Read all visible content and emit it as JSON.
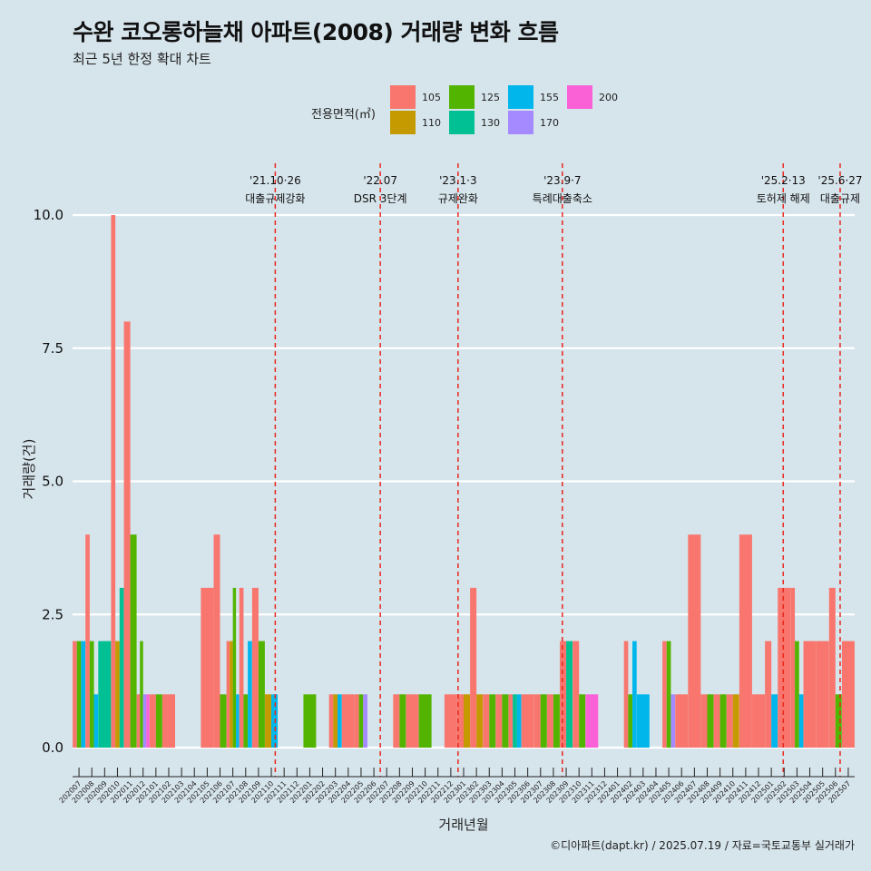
{
  "title": "수완 코오롱하늘채 아파트(2008) 거래량 변화 흐름",
  "subtitle": "최근 5년 한정 확대 차트",
  "caption": "©디아파트(dapt.kr) / 2025.07.19 / 자료=국토교통부 실거래가",
  "colors": {
    "background": "#d6e4ec",
    "gridline": "#ffffff",
    "event_line": "#e8281e",
    "areas": {
      "105": "#f8766d",
      "110": "#c49a00",
      "125": "#53b400",
      "130": "#00c094",
      "155": "#00b6eb",
      "170": "#a58aff",
      "200": "#fb61d7"
    }
  },
  "chart_data": {
    "type": "bar",
    "title": "수완 코오롱하늘채 아파트(2008) 거래량 변화 흐름",
    "subtitle": "최근 5년 한정 확대 차트",
    "xlabel": "거래년월",
    "ylabel": "거래량(건)",
    "ylim": [
      -0.4,
      10.4
    ],
    "yticks": [
      "0.0",
      "2.5",
      "5.0",
      "7.5",
      "10.0"
    ],
    "grid": true,
    "legend": {
      "title": "전용면적(㎡)",
      "position": "top",
      "entries": [
        "105",
        "110",
        "125",
        "130",
        "155",
        "170",
        "200"
      ]
    },
    "categories": [
      "202007",
      "202008",
      "202009",
      "202010",
      "202011",
      "202012",
      "202101",
      "202102",
      "202103",
      "202104",
      "202105",
      "202106",
      "202107",
      "202108",
      "202109",
      "202110",
      "202111",
      "202112",
      "202201",
      "202202",
      "202203",
      "202204",
      "202205",
      "202206",
      "202207",
      "202208",
      "202209",
      "202210",
      "202211",
      "202212",
      "202301",
      "202302",
      "202303",
      "202304",
      "202305",
      "202306",
      "202307",
      "202308",
      "202309",
      "202310",
      "202311",
      "202312",
      "202401",
      "202402",
      "202403",
      "202404",
      "202405",
      "202406",
      "202407",
      "202408",
      "202409",
      "202410",
      "202411",
      "202412",
      "202501",
      "202502",
      "202503",
      "202504",
      "202505",
      "202506",
      "202507"
    ],
    "series": [
      {
        "name": "105",
        "values": [
          2,
          4,
          0,
          10,
          8,
          1,
          1,
          1,
          0,
          0,
          3,
          4,
          2,
          3,
          3,
          0,
          0,
          0,
          0,
          0,
          1,
          1,
          1,
          0,
          0,
          1,
          1,
          0,
          0,
          1,
          1,
          3,
          1,
          1,
          1,
          1,
          1,
          1,
          2,
          2,
          0,
          0,
          0,
          2,
          0,
          0,
          2,
          1,
          4,
          1,
          1,
          1,
          4,
          1,
          2,
          3,
          3,
          2,
          2,
          3,
          2
        ]
      },
      {
        "name": "110",
        "values": [
          0,
          0,
          0,
          2,
          0,
          0,
          0,
          0,
          0,
          0,
          0,
          0,
          2,
          0,
          0,
          1,
          0,
          0,
          0,
          0,
          1,
          0,
          0,
          0,
          0,
          0,
          0,
          0,
          0,
          0,
          1,
          1,
          0,
          0,
          0,
          0,
          0,
          0,
          0,
          0,
          0,
          0,
          0,
          0,
          0,
          0,
          0,
          0,
          0,
          0,
          0,
          1,
          0,
          0,
          0,
          0,
          0,
          0,
          0,
          0,
          0
        ]
      },
      {
        "name": "125",
        "values": [
          2,
          2,
          0,
          0,
          4,
          2,
          1,
          0,
          0,
          0,
          0,
          1,
          3,
          1,
          2,
          0,
          0,
          0,
          1,
          0,
          0,
          0,
          1,
          0,
          0,
          1,
          0,
          1,
          0,
          0,
          0,
          0,
          1,
          1,
          0,
          0,
          1,
          1,
          0,
          1,
          0,
          0,
          0,
          1,
          0,
          0,
          2,
          0,
          0,
          1,
          1,
          0,
          0,
          0,
          0,
          0,
          2,
          0,
          0,
          1,
          0
        ]
      },
      {
        "name": "130",
        "values": [
          0,
          0,
          2,
          3,
          0,
          0,
          0,
          0,
          0,
          0,
          0,
          0,
          0,
          0,
          0,
          0,
          0,
          0,
          0,
          0,
          0,
          0,
          0,
          0,
          0,
          0,
          0,
          0,
          0,
          0,
          0,
          0,
          0,
          0,
          1,
          0,
          0,
          0,
          2,
          0,
          0,
          0,
          0,
          0,
          0,
          0,
          0,
          0,
          0,
          0,
          0,
          0,
          0,
          0,
          0,
          0,
          0,
          0,
          0,
          0,
          0
        ]
      },
      {
        "name": "155",
        "values": [
          2,
          1,
          0,
          0,
          0,
          0,
          0,
          0,
          0,
          0,
          0,
          0,
          1,
          2,
          0,
          1,
          0,
          0,
          0,
          0,
          1,
          0,
          0,
          0,
          0,
          0,
          0,
          0,
          0,
          0,
          0,
          0,
          0,
          0,
          1,
          0,
          0,
          0,
          0,
          0,
          0,
          0,
          0,
          2,
          1,
          0,
          0,
          0,
          0,
          0,
          0,
          0,
          0,
          0,
          1,
          0,
          1,
          0,
          0,
          0,
          0
        ]
      },
      {
        "name": "170",
        "values": [
          0,
          0,
          0,
          0,
          0,
          1,
          0,
          0,
          0,
          0,
          0,
          0,
          0,
          0,
          0,
          0,
          0,
          0,
          0,
          0,
          0,
          0,
          1,
          0,
          0,
          0,
          0,
          0,
          0,
          0,
          0,
          0,
          0,
          0,
          0,
          0,
          0,
          0,
          0,
          0,
          0,
          0,
          0,
          0,
          0,
          0,
          1,
          0,
          0,
          0,
          0,
          0,
          0,
          0,
          0,
          0,
          0,
          0,
          0,
          0,
          0
        ]
      },
      {
        "name": "200",
        "values": [
          0,
          0,
          0,
          0,
          0,
          1,
          0,
          0,
          0,
          0,
          0,
          0,
          0,
          0,
          0,
          0,
          0,
          0,
          0,
          0,
          0,
          0,
          0,
          0,
          0,
          0,
          0,
          0,
          0,
          0,
          0,
          0,
          0,
          0,
          0,
          0,
          0,
          0,
          0,
          0,
          1,
          0,
          0,
          0,
          0,
          0,
          0,
          0,
          0,
          0,
          0,
          0,
          0,
          0,
          0,
          0,
          0,
          0,
          0,
          0,
          0
        ]
      }
    ],
    "events": [
      {
        "x": "2021-10-26",
        "line1": "'21.10·26",
        "line2": "대출규제강화"
      },
      {
        "x": "2022-07-01",
        "line1": "'22.07",
        "line2": "DSR 3단계"
      },
      {
        "x": "2023-01-03",
        "line1": "'23.1·3",
        "line2": "규제완화"
      },
      {
        "x": "2023-09-07",
        "line1": "'23.9·7",
        "line2": "특례대출축소"
      },
      {
        "x": "2025-02-13",
        "line1": "'25.2·13",
        "line2": "토허제 해제"
      },
      {
        "x": "2025-06-27",
        "line1": "'25.6·27",
        "line2": "대출규제"
      }
    ]
  }
}
